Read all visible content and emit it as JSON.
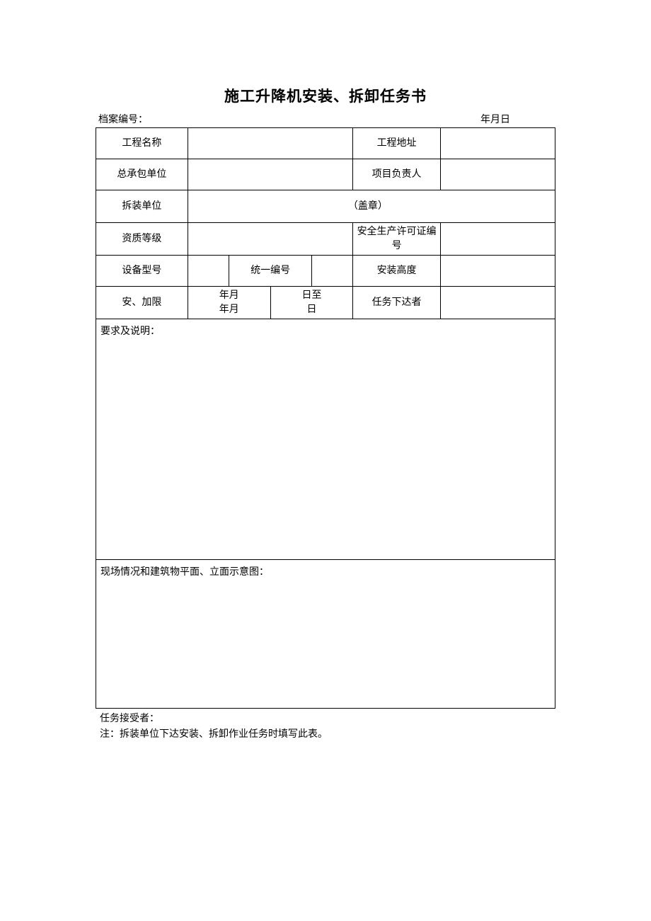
{
  "title": "施工升降机安装、拆卸任务书",
  "header": {
    "file_number_label": "档案编号：",
    "date_label": "年月日"
  },
  "rows": {
    "r1": {
      "label_a": "工程名称",
      "value_a": "",
      "label_b": "工程地址",
      "value_b": ""
    },
    "r2": {
      "label_a": "总承包单位",
      "value_a": "",
      "label_b": "项目负责人",
      "value_b": ""
    },
    "r3": {
      "label_a": "拆装单位",
      "seal_text": "（盖章）"
    },
    "r4": {
      "label_a": "资质等级",
      "value_a": "",
      "label_b": "安全生产许可证编号",
      "value_b": ""
    },
    "r5": {
      "label_a": "设备型号",
      "value_a": "",
      "label_mid": "统一编号",
      "value_mid": "",
      "label_b": "安装高度",
      "value_b": ""
    },
    "r6": {
      "label_a": "安、加限",
      "date_text_left": "年月\n年月",
      "date_text_right": "日至\n日",
      "label_b": "任务下达者",
      "value_b": ""
    }
  },
  "requirements": {
    "label": "要求及说明：",
    "content": ""
  },
  "diagram": {
    "label": "现场情况和建筑物平面、立面示意图：",
    "content": ""
  },
  "footer": {
    "recipient_label": "任务接受者：",
    "note": "注：拆装单位下达安装、拆卸作业任务时填写此表。"
  },
  "style": {
    "background_color": "#ffffff",
    "border_color": "#000000",
    "title_fontsize": 21,
    "body_fontsize": 14,
    "font_family": "SimSun"
  }
}
